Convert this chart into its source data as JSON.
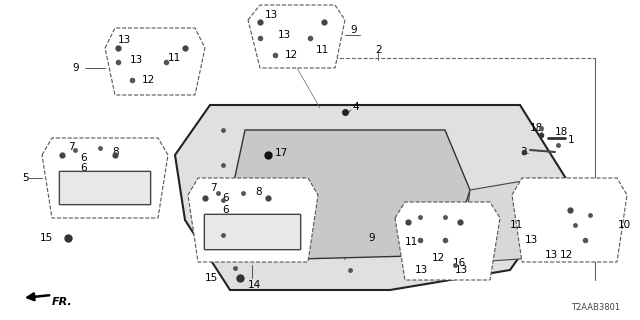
{
  "bg_color": "#ffffff",
  "fig_width": 6.4,
  "fig_height": 3.2,
  "dpi": 100,
  "diagram_code": "T2AAB3801",
  "fr_label": "FR.",
  "line_color": "#000000",
  "text_color": "#000000",
  "edge_color": "#555555"
}
